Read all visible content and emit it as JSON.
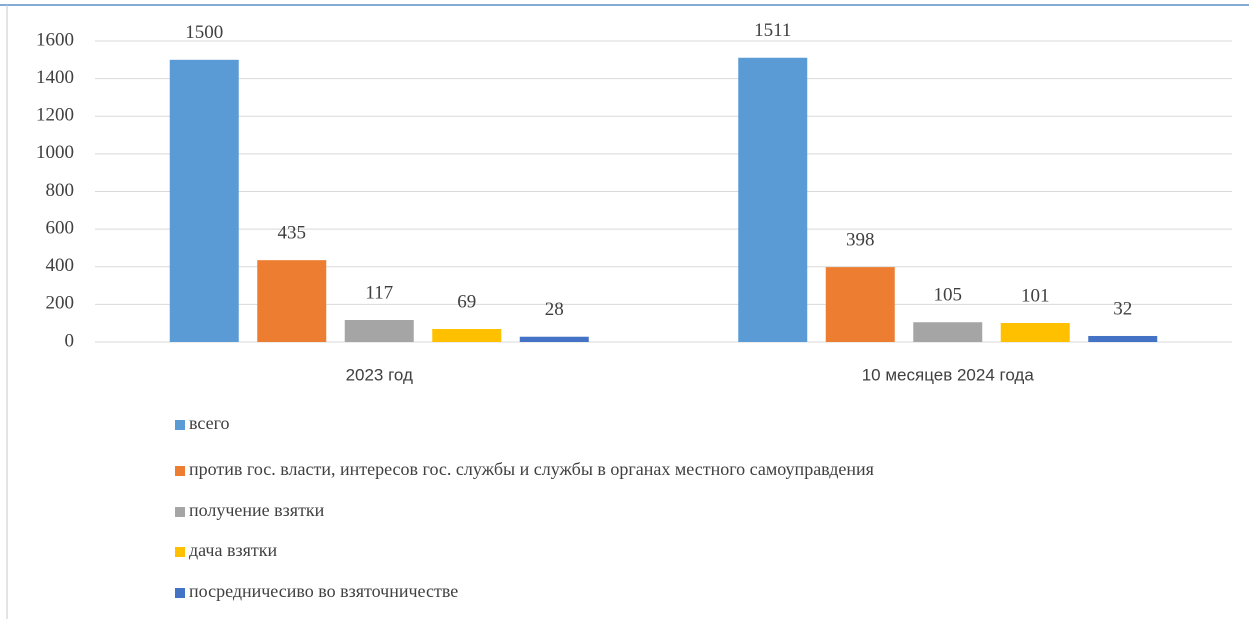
{
  "chart_data": {
    "type": "bar",
    "categories": [
      "2023 год",
      "10 месяцев 2024 года"
    ],
    "series": [
      {
        "name": "всего",
        "color": "#5b9bd5",
        "values": [
          1500,
          1511
        ]
      },
      {
        "name": "против гос. власти, интересов гос. службы и службы в органах местного самоуправдения",
        "color": "#ed7d31",
        "values": [
          435,
          398
        ]
      },
      {
        "name": "получение взятки",
        "color": "#a5a5a5",
        "values": [
          117,
          105
        ]
      },
      {
        "name": "дача взятки",
        "color": "#ffc000",
        "values": [
          69,
          101
        ]
      },
      {
        "name": "посредничесиво во взяточничестве",
        "color": "#4472c4",
        "values": [
          28,
          32
        ]
      }
    ],
    "ylim": [
      0,
      1600
    ],
    "yticks": [
      0,
      200,
      400,
      600,
      800,
      1000,
      1200,
      1400,
      1600
    ],
    "grid": true,
    "legend": "bottom",
    "data_labels": true
  }
}
